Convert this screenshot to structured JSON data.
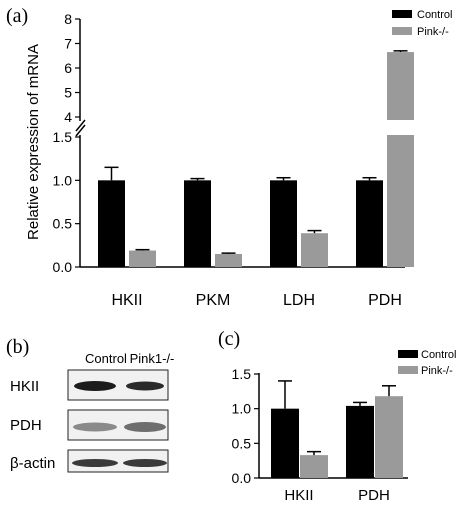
{
  "panels": {
    "a": "(a)",
    "b": "(b)",
    "c": "(c)"
  },
  "colors": {
    "control": "#000000",
    "knockout": "#9a9a9a"
  },
  "blot": {
    "columns": [
      "Control",
      "Pink1-/-"
    ],
    "rows": [
      "HKII",
      "PDH",
      "β-actin"
    ]
  },
  "chart_data": [
    {
      "type": "bar",
      "panel": "a",
      "ylabel": "Relative expression of  mRNA",
      "categories": [
        "HKII",
        "PKM",
        "LDH",
        "PDH"
      ],
      "series": [
        {
          "name": "Control",
          "values": [
            1.0,
            1.0,
            1.0,
            1.0
          ],
          "errors": [
            0.15,
            0.02,
            0.03,
            0.03
          ]
        },
        {
          "name": "Pink-/-",
          "values": [
            0.19,
            0.15,
            0.39,
            6.65
          ],
          "errors": [
            0.01,
            0.01,
            0.03,
            0.05
          ]
        }
      ],
      "ylim": [
        0,
        8
      ],
      "axis_break": [
        1.5,
        4
      ],
      "yticks_lower": [
        "0.0",
        "0.5",
        "1.0",
        "1.5"
      ],
      "yticks_upper": [
        "4",
        "5",
        "6",
        "7",
        "8"
      ],
      "legend": "top-right"
    },
    {
      "type": "bar",
      "panel": "c",
      "categories": [
        "HKII",
        "PDH"
      ],
      "series": [
        {
          "name": "Control",
          "values": [
            1.0,
            1.04
          ],
          "errors": [
            0.4,
            0.05
          ]
        },
        {
          "name": "Pink-/-",
          "values": [
            0.33,
            1.18
          ],
          "errors": [
            0.05,
            0.15
          ]
        }
      ],
      "ylim": [
        0,
        1.5
      ],
      "yticks": [
        "0.0",
        "0.5",
        "1.0",
        "1.5"
      ],
      "legend": "top-right"
    }
  ]
}
